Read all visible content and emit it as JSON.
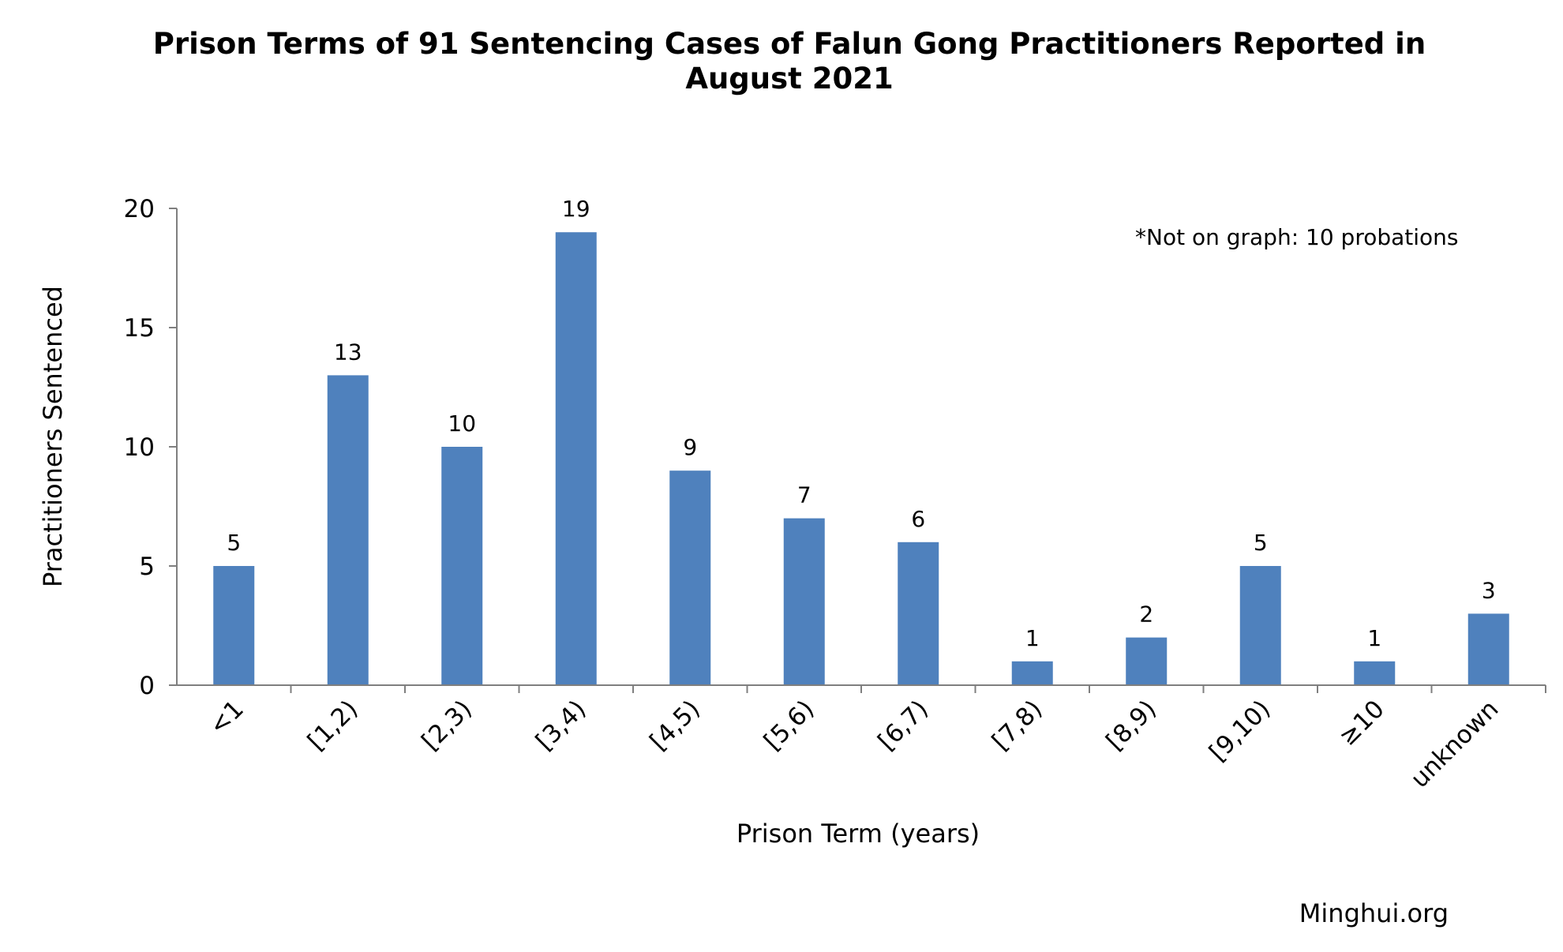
{
  "chart_data": {
    "type": "bar",
    "title_lines": [
      "Prison Terms of 91 Sentencing Cases of Falun Gong Practitioners Reported in",
      "August 2021"
    ],
    "xlabel": "Prison Term (years)",
    "ylabel": "Practitioners Sentenced",
    "categories": [
      "<1",
      "[1,2)",
      "[2,3)",
      "[3,4)",
      "[4,5)",
      "[5,6)",
      "[6,7)",
      "[7,8)",
      "[8,9)",
      "[9,10)",
      "≥10",
      "unknown"
    ],
    "values": [
      5,
      13,
      10,
      19,
      9,
      7,
      6,
      1,
      2,
      5,
      1,
      3
    ],
    "ylim": [
      0,
      20
    ],
    "yticks": [
      "0",
      "5",
      "10",
      "15",
      "20"
    ],
    "ytick_values": [
      0,
      5,
      10,
      15,
      20
    ],
    "grid": false,
    "legend": "none",
    "bar_color": "#4f81bd",
    "annotation": "*Not on graph: 10 probations"
  },
  "watermark": "Minghui.org"
}
